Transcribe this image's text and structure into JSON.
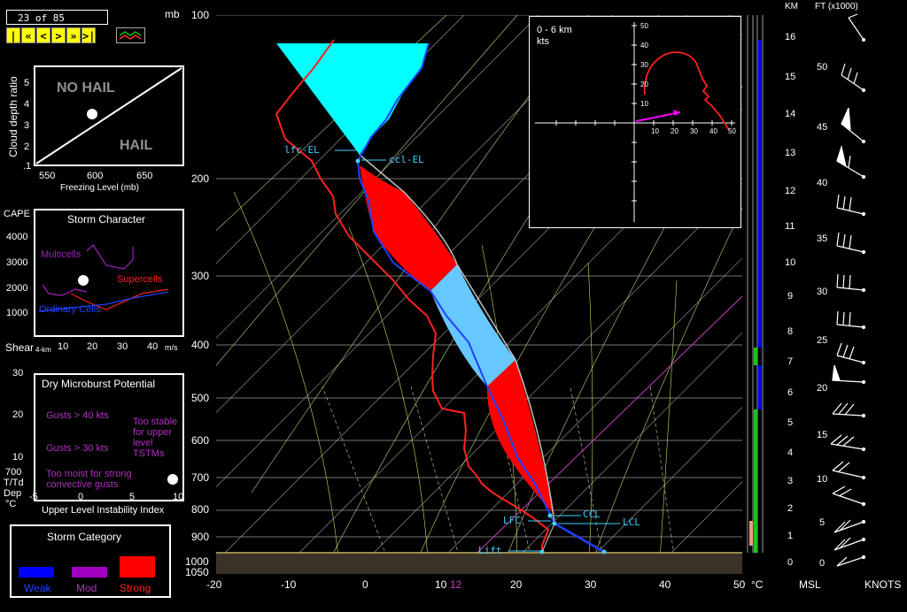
{
  "toolbar": {
    "frame_counter": "23 of 85",
    "pressure_units": "mb",
    "nav_buttons": [
      "|<",
      "«",
      "<",
      ">",
      "»",
      ">|"
    ]
  },
  "hail_panel": {
    "y_axis_label": "Cloud depth ratio",
    "y_ticks": [
      "5",
      "4",
      "3",
      "2",
      ".1"
    ],
    "x_ticks": [
      "550",
      "600",
      "650"
    ],
    "x_axis_label": "Freezing Level (mb)",
    "no_hail_label": "NO HAIL",
    "hail_label": "HAIL"
  },
  "storm_character": {
    "title": "Storm Character",
    "y_axis_label": "CAPE",
    "y_ticks": [
      "4000",
      "3000",
      "2000",
      "1000"
    ],
    "x_label": "Shear",
    "x_sub": "4-km",
    "x_ticks": [
      "10",
      "20",
      "30",
      "40"
    ],
    "x_units": "m/s",
    "multicells": "Multicells",
    "supercells": "Supercells",
    "ordinary": "Ordinary Cells"
  },
  "microburst": {
    "title": "Dry Microburst Potential",
    "y_ticks": [
      "30",
      "20",
      "10"
    ],
    "side_label_1": "700",
    "side_label_2": "T/Td",
    "side_label_3": "Dep",
    "side_label_4": "°C",
    "x_ticks": [
      "-5",
      "0",
      "5",
      "10"
    ],
    "x_axis_label": "Upper Level Instability Index",
    "gusts_40": "Gusts > 40 kts",
    "gusts_30": "Gusts > 30 kts",
    "too_stable": [
      "Too stable",
      "for upper",
      "level",
      "TSTMs"
    ],
    "too_moist": [
      "Too moist for strong",
      "convective gusts"
    ]
  },
  "storm_category": {
    "title": "Storm Category",
    "items": [
      {
        "label": "Weak",
        "color": "#0000ff"
      },
      {
        "label": "Mod",
        "color": "#a000c0"
      },
      {
        "label": "Strong",
        "color": "#ff0000"
      }
    ]
  },
  "skewt": {
    "pressure_labels": [
      "100",
      "200",
      "300",
      "400",
      "500",
      "600",
      "700",
      "800",
      "900",
      "1000",
      "1050"
    ],
    "temp_labels": [
      "-20",
      "-10",
      "0",
      "10",
      "20",
      "30",
      "40",
      "50"
    ],
    "temp_units": "°C",
    "extra_label": "12",
    "parcel_labels": {
      "lfc_el": "lfc-EL",
      "ccl_el": "ccl-EL",
      "ccl": "CCL",
      "lfc": "LFC",
      "lcl": "LCL",
      "lift": "Lift"
    }
  },
  "hodograph": {
    "title": "0 - 6 km",
    "units": "kts",
    "x_ticks": [
      "10",
      "20",
      "30",
      "40",
      "50"
    ],
    "y_ticks": [
      "50",
      "40",
      "30",
      "20",
      "10"
    ]
  },
  "wind_profile": {
    "km_header": "KM",
    "ft_header": "FT (x1000)",
    "km_ticks": [
      "16",
      "15",
      "14",
      "13",
      "12",
      "11",
      "10",
      "9",
      "8",
      "7",
      "6",
      "5",
      "4",
      "3",
      "2",
      "1",
      "0"
    ],
    "ft_ticks": [
      "50",
      "45",
      "40",
      "35",
      "30",
      "25",
      "20",
      "15",
      "10",
      "5",
      "0"
    ],
    "msl_label": "MSL",
    "knots_label": "KNOTS"
  }
}
